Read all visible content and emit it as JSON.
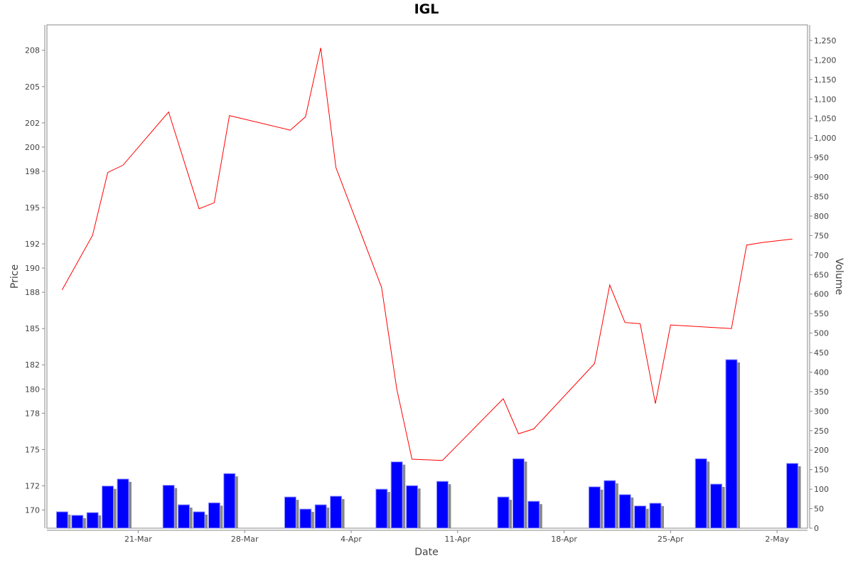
{
  "chart_data": {
    "type": "line",
    "title": "IGL",
    "xlabel": "Date",
    "ylabel": "Price",
    "y2label": "Volume",
    "grid": false,
    "legend": "none",
    "x_ticks": [
      "21-Mar",
      "28-Mar",
      "4-Apr",
      "11-Apr",
      "18-Apr",
      "25-Apr",
      "2-May"
    ],
    "y_ticks": [
      "170",
      "172",
      "175",
      "178",
      "180",
      "182",
      "185",
      "188",
      "190",
      "192",
      "195",
      "198",
      "200",
      "202",
      "205",
      "208"
    ],
    "y2_ticks": [
      "0",
      "50",
      "100",
      "150",
      "200",
      "250",
      "300",
      "350",
      "400",
      "450",
      "500",
      "550",
      "600",
      "650",
      "700",
      "750",
      "800",
      "850",
      "900",
      "950",
      "1,000",
      "1,050",
      "1,100",
      "1,150",
      "1,200",
      "1,250"
    ],
    "price_range": [
      168.5,
      210.1
    ],
    "volume_range": [
      0,
      1290
    ],
    "x_range": [
      "2022-03-15",
      "2022-05-04"
    ],
    "series": [
      {
        "name": "Price",
        "kind": "line",
        "color": "#ff0000",
        "x": [
          "2022-03-16",
          "2022-03-18",
          "2022-03-19",
          "2022-03-20",
          "2022-03-23",
          "2022-03-25",
          "2022-03-26",
          "2022-03-27",
          "2022-03-31",
          "2022-04-01",
          "2022-04-02",
          "2022-04-03",
          "2022-04-06",
          "2022-04-07",
          "2022-04-08",
          "2022-04-10",
          "2022-04-14",
          "2022-04-15",
          "2022-04-16",
          "2022-04-20",
          "2022-04-21",
          "2022-04-22",
          "2022-04-23",
          "2022-04-24",
          "2022-04-25",
          "2022-04-29",
          "2022-04-30",
          "2022-05-01",
          "2022-05-03"
        ],
        "values": [
          188.2,
          192.7,
          197.9,
          198.5,
          202.9,
          194.9,
          195.4,
          202.6,
          201.4,
          202.5,
          208.2,
          198.3,
          188.4,
          180.0,
          174.2,
          174.1,
          179.2,
          176.3,
          176.7,
          182.1,
          188.6,
          185.5,
          185.4,
          178.8,
          185.3,
          185.0,
          191.9,
          192.1,
          192.4
        ]
      },
      {
        "name": "Volume",
        "kind": "bar",
        "color": "#0000ff",
        "x": [
          "2022-03-16",
          "2022-03-17",
          "2022-03-18",
          "2022-03-19",
          "2022-03-20",
          "2022-03-23",
          "2022-03-24",
          "2022-03-25",
          "2022-03-26",
          "2022-03-27",
          "2022-03-31",
          "2022-04-01",
          "2022-04-02",
          "2022-04-03",
          "2022-04-06",
          "2022-04-07",
          "2022-04-08",
          "2022-04-10",
          "2022-04-14",
          "2022-04-15",
          "2022-04-16",
          "2022-04-20",
          "2022-04-21",
          "2022-04-22",
          "2022-04-23",
          "2022-04-24",
          "2022-04-27",
          "2022-04-28",
          "2022-04-29",
          "2022-05-03"
        ],
        "values": [
          42,
          33,
          40,
          108,
          126,
          110,
          60,
          42,
          65,
          140,
          80,
          49,
          60,
          82,
          100,
          170,
          109,
          120,
          80,
          178,
          69,
          106,
          122,
          86,
          57,
          64,
          178,
          113,
          432,
          166
        ]
      }
    ]
  }
}
